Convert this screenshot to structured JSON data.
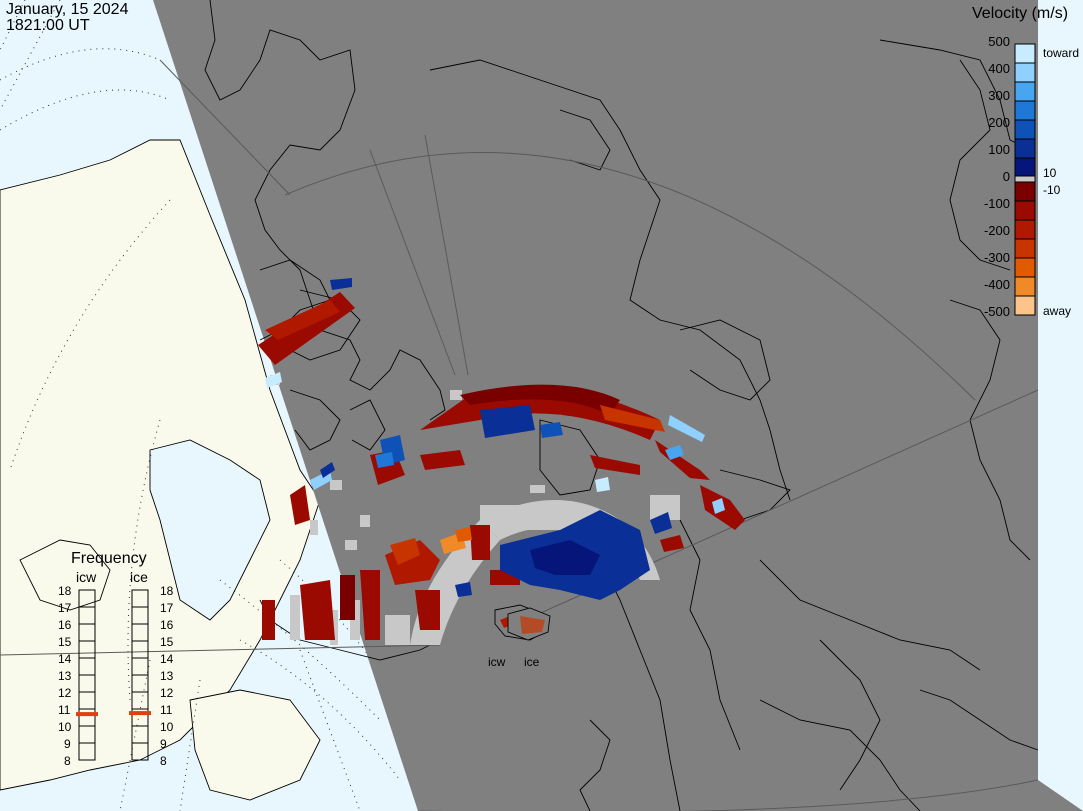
{
  "header": {
    "date": "January, 15 2024",
    "time": "1821:00 UT"
  },
  "velocity_scale": {
    "title": "Velocity (m/s)",
    "ticks": [
      "500",
      "400",
      "300",
      "200",
      "100",
      "0",
      "-100",
      "-200",
      "-300",
      "-400",
      "-500"
    ],
    "near_zero_labels": [
      "10",
      "-10"
    ],
    "toward_label": "toward",
    "away_label": "away",
    "colors": {
      "toward": [
        "#c8ecff",
        "#8fd0ff",
        "#48a6f0",
        "#1f78d8",
        "#0e52b8",
        "#0a2f96",
        "#06157a"
      ],
      "zero": "#c8c8c8",
      "away": [
        "#7a0000",
        "#9a0a00",
        "#b01800",
        "#c83400",
        "#e05a00",
        "#f08a28",
        "#fcc48a"
      ]
    }
  },
  "frequency_panel": {
    "title": "Frequency",
    "radars": [
      "icw",
      "ice"
    ],
    "ticks": [
      "18",
      "17",
      "16",
      "15",
      "14",
      "13",
      "12",
      "11",
      "10",
      "9",
      "8"
    ],
    "current_mhz": {
      "icw": 10.7,
      "ice": 10.7
    },
    "marker_color": "#e04010"
  },
  "radar_labels": [
    "icw",
    "ice"
  ],
  "map_colors": {
    "night": "#808080",
    "ocean": "#e8f6fd",
    "land": "#fafaec",
    "ground_scatter": "#c8c8c8",
    "coast": "#000000"
  }
}
